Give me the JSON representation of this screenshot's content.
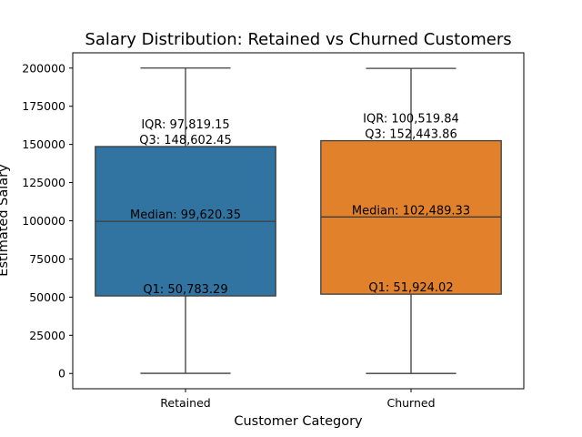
{
  "chart_data": {
    "type": "box",
    "title": "Salary Distribution: Retained vs Churned Customers",
    "xlabel": "Customer Category",
    "ylabel": "Estimated Salary",
    "ylim": [
      -10000,
      210000
    ],
    "yticks": [
      0,
      25000,
      50000,
      75000,
      100000,
      125000,
      150000,
      175000,
      200000
    ],
    "grid": false,
    "categories": [
      "Retained",
      "Churned"
    ],
    "series": [
      {
        "category": "Retained",
        "color": "#3274a1",
        "min": 90.07,
        "q1": 50783.29,
        "median": 99620.35,
        "q3": 148602.45,
        "max": 199992.48,
        "annotations": {
          "iqr": "IQR: 97,819.15",
          "q3": "Q3: 148,602.45",
          "median": "Median: 99,620.35",
          "q1": "Q1: 50,783.29"
        }
      },
      {
        "category": "Churned",
        "color": "#e1812c",
        "min": 11.58,
        "q1": 51924.02,
        "median": 102489.33,
        "q3": 152443.86,
        "max": 199808.1,
        "annotations": {
          "iqr": "IQR: 100,519.84",
          "q3": "Q3: 152,443.86",
          "median": "Median: 102,489.33",
          "q1": "Q1: 51,924.02"
        }
      }
    ]
  }
}
